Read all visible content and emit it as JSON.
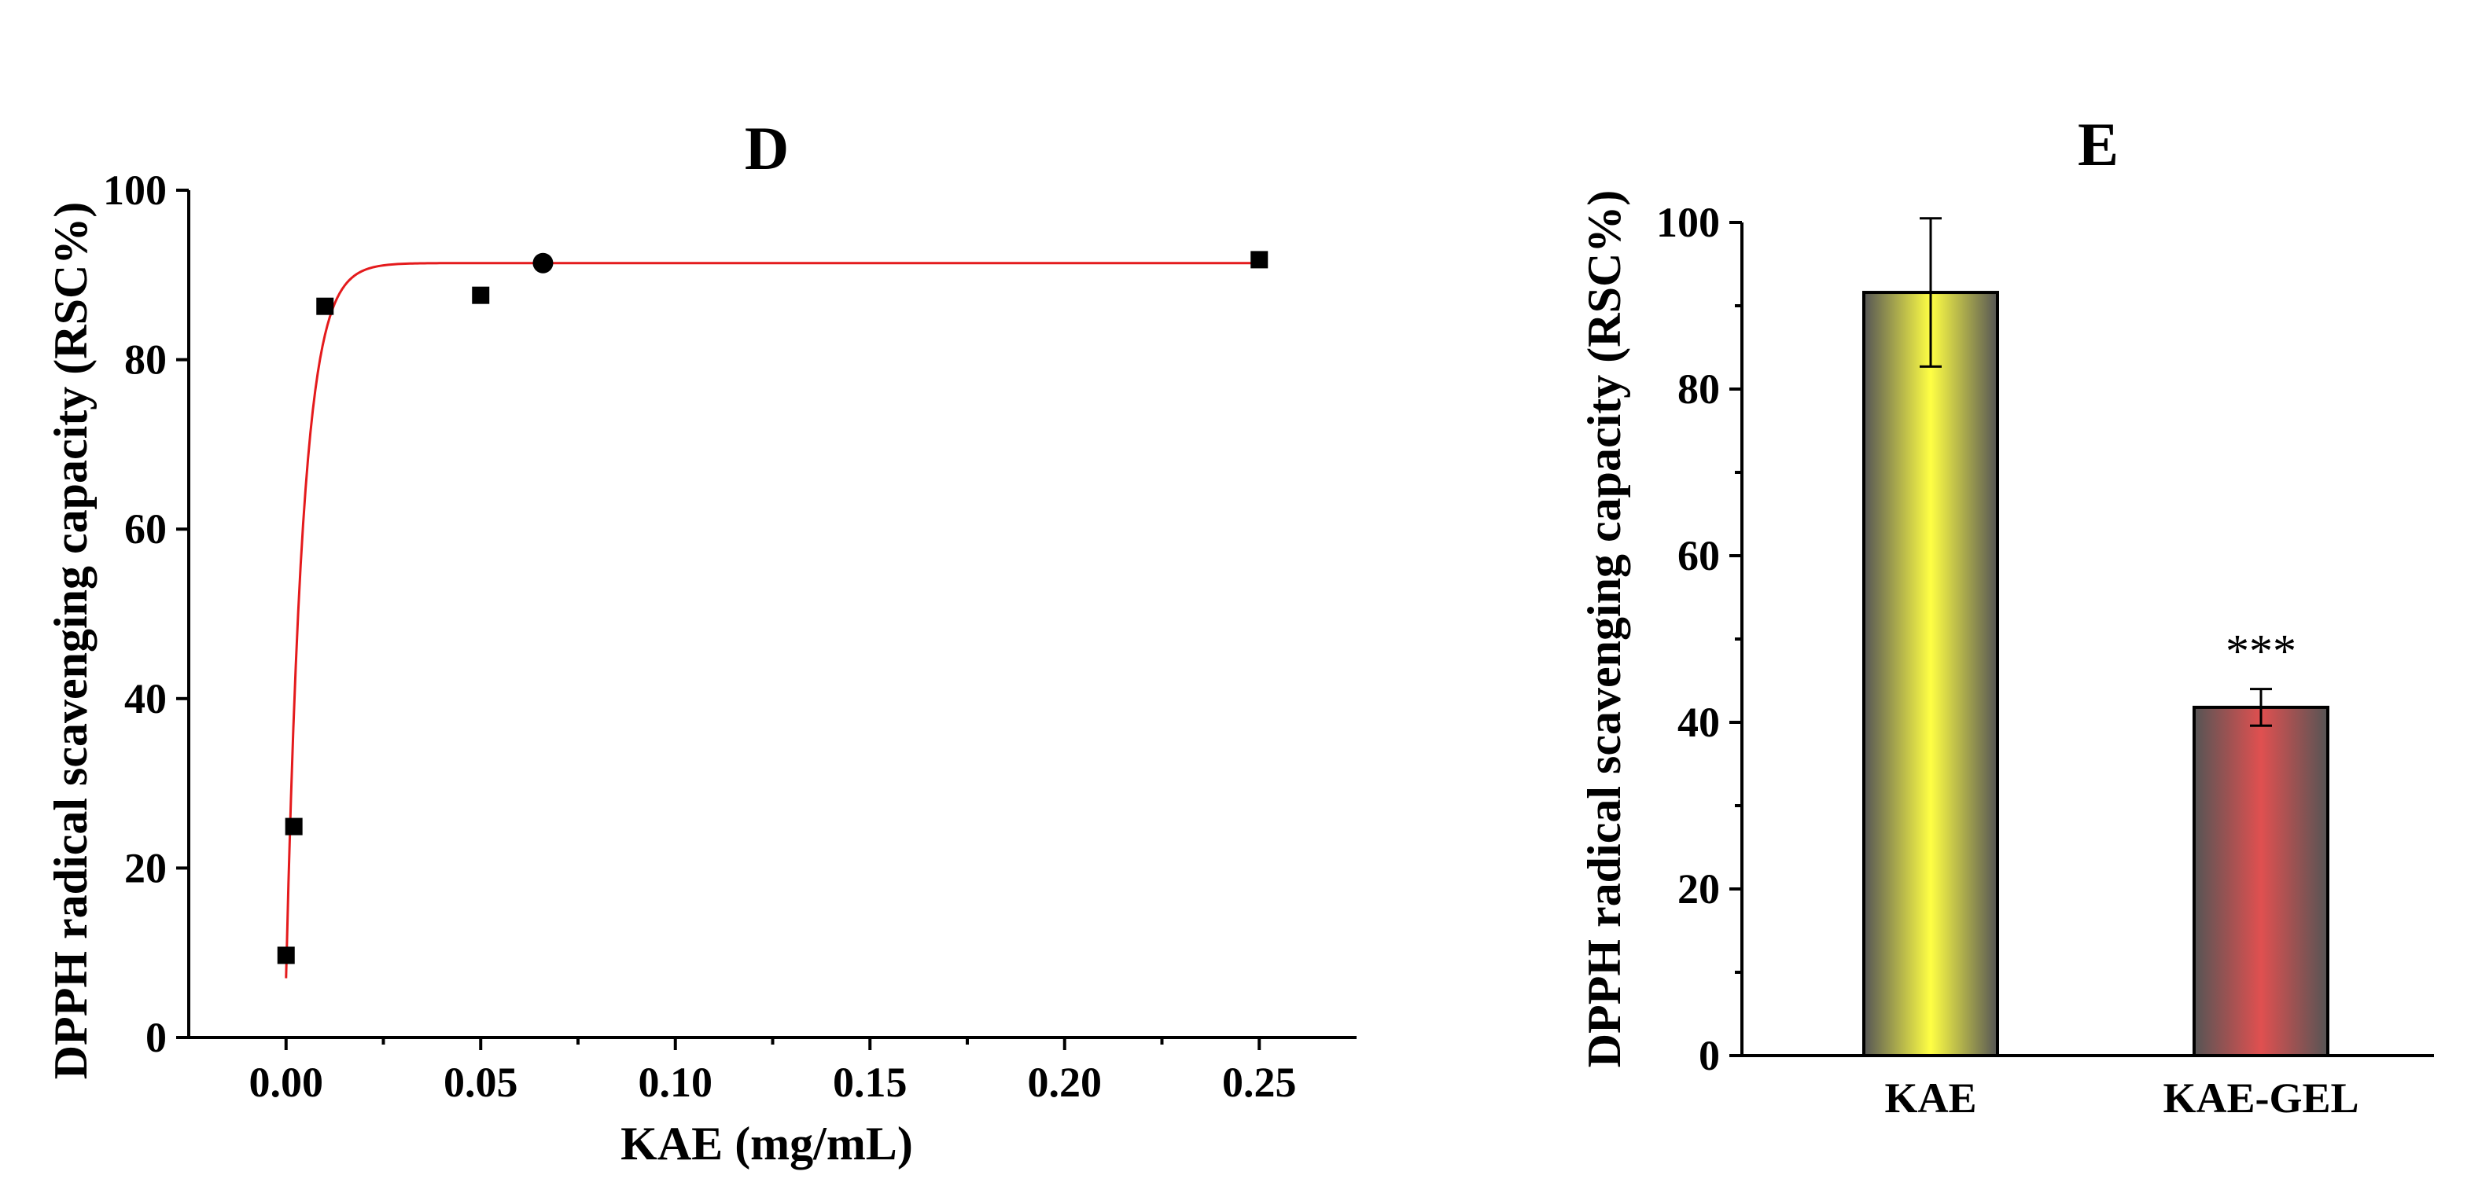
{
  "chart_data": [
    {
      "panel": "D",
      "type": "scatter",
      "title": "D",
      "xlabel": "KAE (mg/mL)",
      "ylabel": "DPPH  radical scavenging capacity (RSC%)",
      "xlim": [
        -0.025,
        0.275
      ],
      "ylim": [
        0,
        100
      ],
      "xticks": [
        "0.00",
        "0.05",
        "0.10",
        "0.15",
        "0.20",
        "0.25"
      ],
      "yticks": [
        "0",
        "20",
        "40",
        "60",
        "80",
        "100"
      ],
      "points": [
        {
          "x": 0.0,
          "y": 9.7,
          "marker": "square"
        },
        {
          "x": 0.002,
          "y": 24.9,
          "marker": "square"
        },
        {
          "x": 0.01,
          "y": 86.3,
          "marker": "square"
        },
        {
          "x": 0.05,
          "y": 87.6,
          "marker": "square"
        },
        {
          "x": 0.066,
          "y": 91.4,
          "marker": "circle"
        },
        {
          "x": 0.25,
          "y": 91.8,
          "marker": "square"
        }
      ],
      "fit": {
        "type": "exponential",
        "ymax": 91.4,
        "y0": 7.0,
        "rate": 230,
        "color": "#e41a1c"
      }
    },
    {
      "panel": "E",
      "type": "bar",
      "title": "E",
      "xlabel": "",
      "ylabel": "DPPH radical scavenging capacity (RSC%)",
      "ylim": [
        0,
        100
      ],
      "yticks": [
        "0",
        "20",
        "40",
        "60",
        "80",
        "100"
      ],
      "categories": [
        "KAE",
        "KAE-GEL"
      ],
      "values": [
        91.6,
        41.8
      ],
      "errors": [
        8.9,
        2.2
      ],
      "colors": [
        "#ffff44",
        "#e05050"
      ],
      "annotations": [
        "",
        "***"
      ]
    }
  ]
}
